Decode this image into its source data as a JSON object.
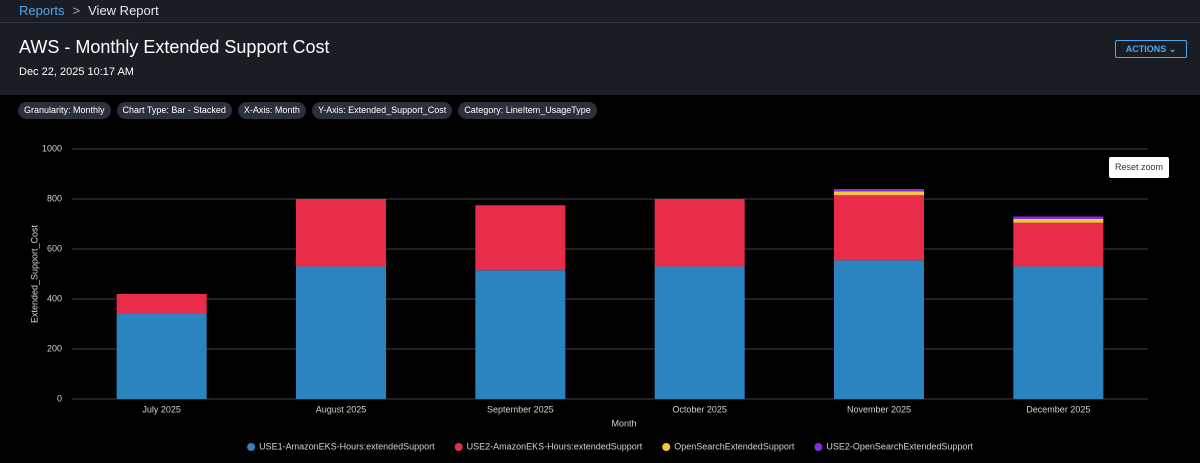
{
  "breadcrumb": {
    "parent": "Reports",
    "current": "View Report"
  },
  "header": {
    "title": "AWS - Monthly Extended Support Cost",
    "timestamp": "Dec 22, 2025 10:17 AM",
    "actions": "ACTIONS"
  },
  "filters": [
    "Granularity: Monthly",
    "Chart Type: Bar - Stacked",
    "X-Axis: Month",
    "Y-Axis: Extended_Support_Cost",
    "Category: LineItem_UsageType"
  ],
  "reset_zoom": "Reset zoom",
  "chart_data": {
    "type": "stacked_bar",
    "x_label": "Month",
    "y_label": "Extended_Support_Cost",
    "categories": [
      "July 2025",
      "August 2025",
      "September 2025",
      "October 2025",
      "November 2025",
      "December 2025"
    ],
    "series": [
      {
        "name": "USE1-AmazonEKS-Hours:extendedSupport",
        "color": "#2b84bf",
        "values": [
          340,
          530,
          515,
          530,
          555,
          530
        ]
      },
      {
        "name": "USE2-AmazonEKS-Hours:extendedSupport",
        "color": "#e82c4a",
        "values": [
          80,
          270,
          260,
          270,
          260,
          175
        ]
      },
      {
        "name": "OpenSearchExtendedSupport",
        "color": "#f5c63c",
        "values": [
          0,
          0,
          0,
          0,
          15,
          15
        ]
      },
      {
        "name": "USE2-OpenSearchExtendedSupport",
        "color": "#8a2be2",
        "values": [
          0,
          0,
          0,
          0,
          10,
          10
        ]
      }
    ],
    "ylim": [
      0,
      1000
    ],
    "yticks": [
      0,
      200,
      400,
      600,
      800,
      1000
    ],
    "grid": true,
    "legend": "bottom"
  }
}
